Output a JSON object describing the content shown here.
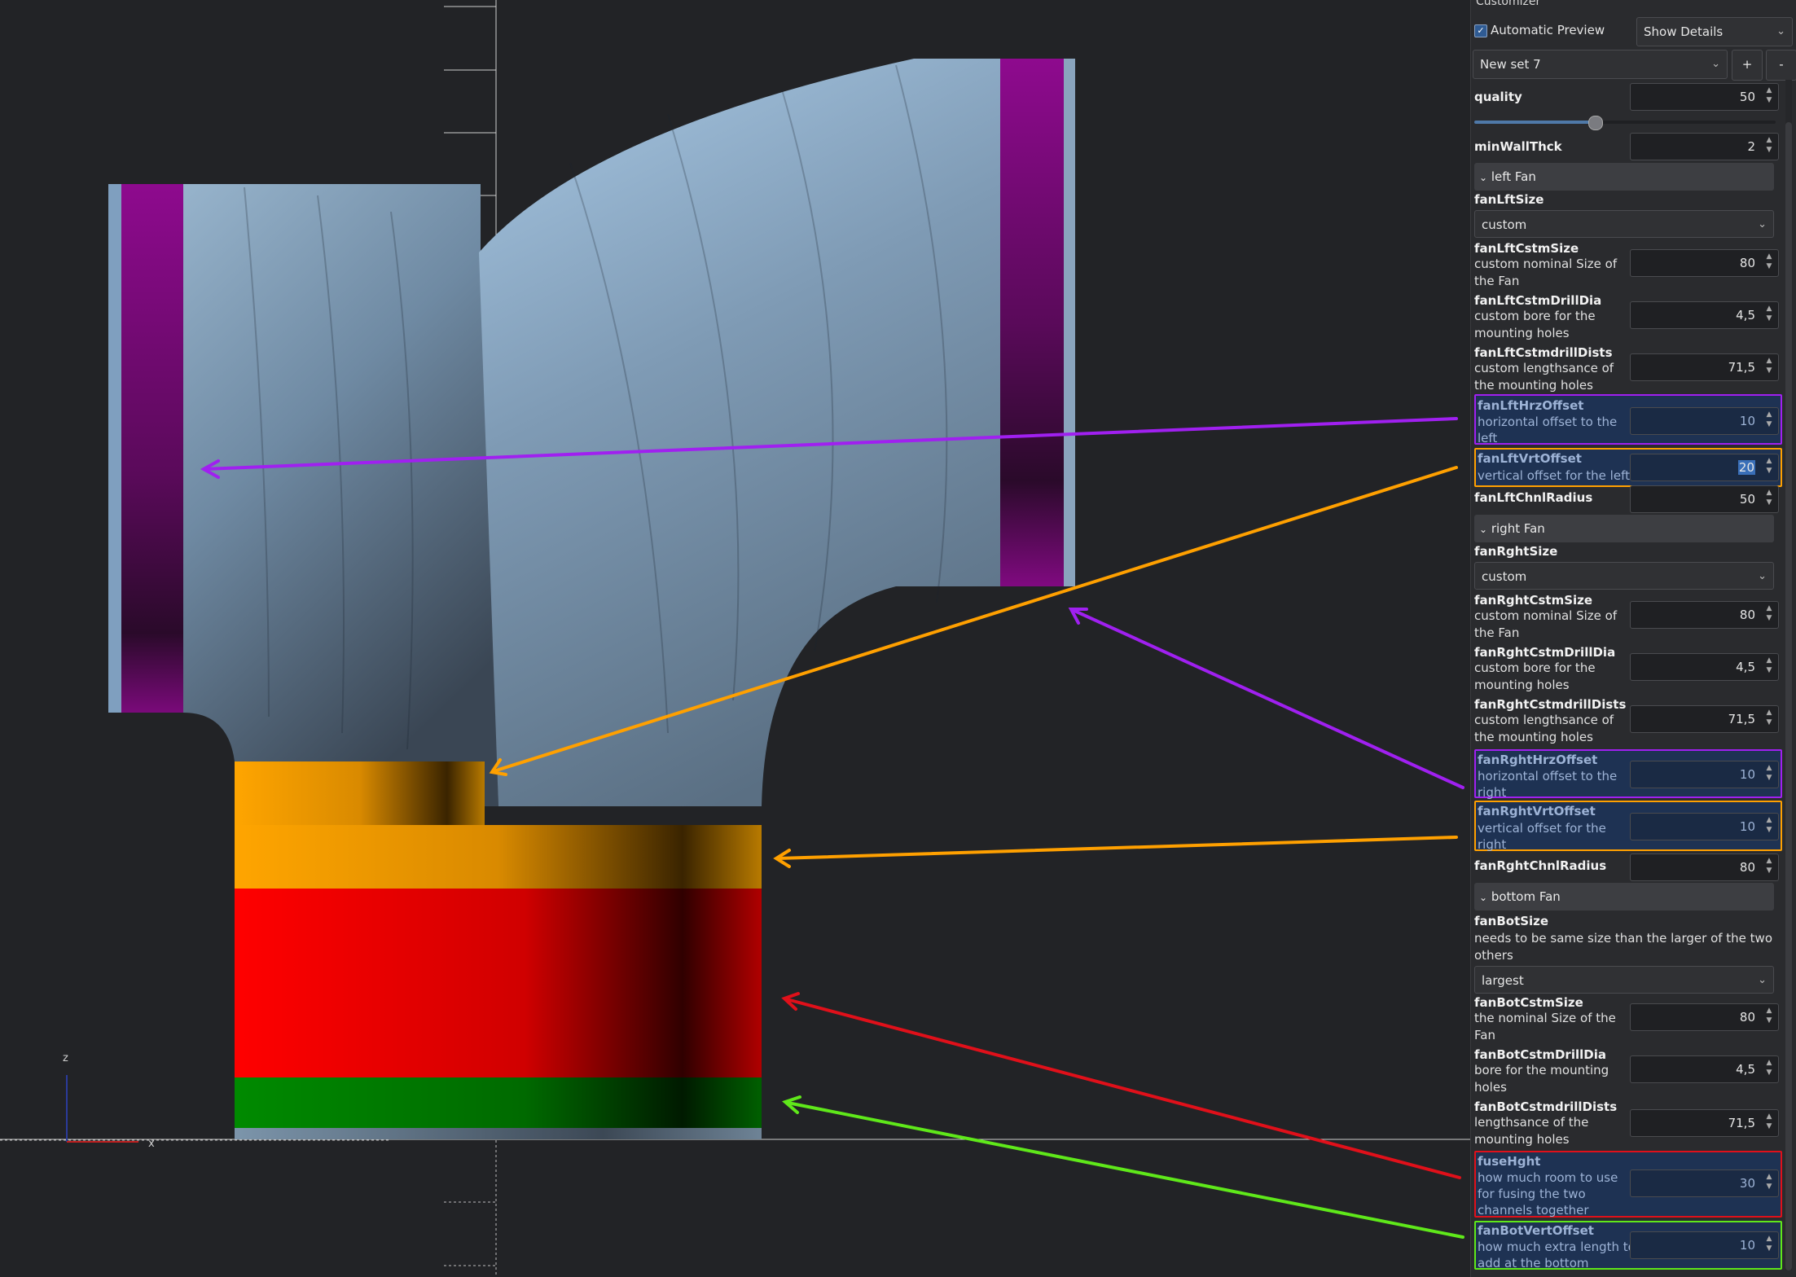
{
  "viewport": {
    "axis_labels": {
      "z": "z",
      "x": "x"
    },
    "colors": {
      "background": "#222326",
      "model": "#8fb0cc",
      "fan_face": "#8b0a8b",
      "fuse": "#ff0000",
      "offset_orange": "#ffa500",
      "bottom_green": "#008000",
      "arrow_purple": "#a020f0",
      "arrow_orange": "#ffa000",
      "arrow_red": "#e0101a",
      "arrow_green": "#5fe81a"
    }
  },
  "customizer": {
    "title": "Customizer",
    "automatic_preview": {
      "label": "Automatic Preview",
      "checked": true
    },
    "details_select": "Show Details",
    "preset_select": "New set 7",
    "add_label": "+",
    "remove_label": "-",
    "quality": {
      "name": "quality",
      "value": "50",
      "slider_fraction": 0.5
    },
    "minWallThck": {
      "name": "minWallThck",
      "value": "2"
    },
    "left_fan": {
      "group": "left Fan",
      "size": {
        "name": "fanLftSize",
        "value": "custom"
      },
      "cstm_size": {
        "name": "fanLftCstmSize",
        "desc1": "custom nominal Size of",
        "desc2": "the Fan",
        "value": "80"
      },
      "drill_dia": {
        "name": "fanLftCstmDrillDia",
        "desc1": "custom bore for the",
        "desc2": "mounting holes",
        "value": "4,5"
      },
      "drill_dists": {
        "name": "fanLftCstmdrillDists",
        "desc1": "custom lengthsance of",
        "desc2": "the mounting holes",
        "value": "71,5"
      },
      "hrz_offset": {
        "name": "fanLftHrzOffset",
        "desc1": "horizontal offset to the",
        "desc2": "left",
        "value": "10"
      },
      "vrt_offset": {
        "name": "fanLftVrtOffset",
        "desc1": "vertical offset for the left",
        "value": "20"
      },
      "chnl_radius": {
        "name": "fanLftChnlRadius",
        "value": "50"
      }
    },
    "right_fan": {
      "group": "right Fan",
      "size": {
        "name": "fanRghtSize",
        "value": "custom"
      },
      "cstm_size": {
        "name": "fanRghtCstmSize",
        "desc1": "custom nominal Size of",
        "desc2": "the Fan",
        "value": "80"
      },
      "drill_dia": {
        "name": "fanRghtCstmDrillDia",
        "desc1": "custom bore for the",
        "desc2": "mounting holes",
        "value": "4,5"
      },
      "drill_dists": {
        "name": "fanRghtCstmdrillDists",
        "desc1": "custom lengthsance of",
        "desc2": "the mounting holes",
        "value": "71,5"
      },
      "hrz_offset": {
        "name": "fanRghtHrzOffset",
        "desc1": "horizontal offset to the",
        "desc2": "right",
        "value": "10"
      },
      "vrt_offset": {
        "name": "fanRghtVrtOffset",
        "desc1": "vertical offset for the",
        "desc2": "right",
        "value": "10"
      },
      "chnl_radius": {
        "name": "fanRghtChnlRadius",
        "value": "80"
      }
    },
    "bottom_fan": {
      "group": "bottom Fan",
      "size": {
        "name": "fanBotSize",
        "desc1": "needs to be same size than the larger of the two",
        "desc2": "others",
        "value": "largest"
      },
      "cstm_size": {
        "name": "fanBotCstmSize",
        "desc1": "the nominal Size of the",
        "desc2": "Fan",
        "value": "80"
      },
      "drill_dia": {
        "name": "fanBotCstmDrillDia",
        "desc1": "bore for the mounting",
        "desc2": "holes",
        "value": "4,5"
      },
      "drill_dists": {
        "name": "fanBotCstmdrillDists",
        "desc1": "lengthsance of the",
        "desc2": "mounting holes",
        "value": "71,5"
      },
      "fuse_hght": {
        "name": "fuseHght",
        "desc1": "how much room to use",
        "desc2": "for fusing the two",
        "desc3": "channels together",
        "value": "30"
      },
      "vert_offset": {
        "name": "fanBotVertOffset",
        "desc1": "how much extra length to",
        "desc2": "add at the bottom",
        "value": "10"
      }
    }
  }
}
